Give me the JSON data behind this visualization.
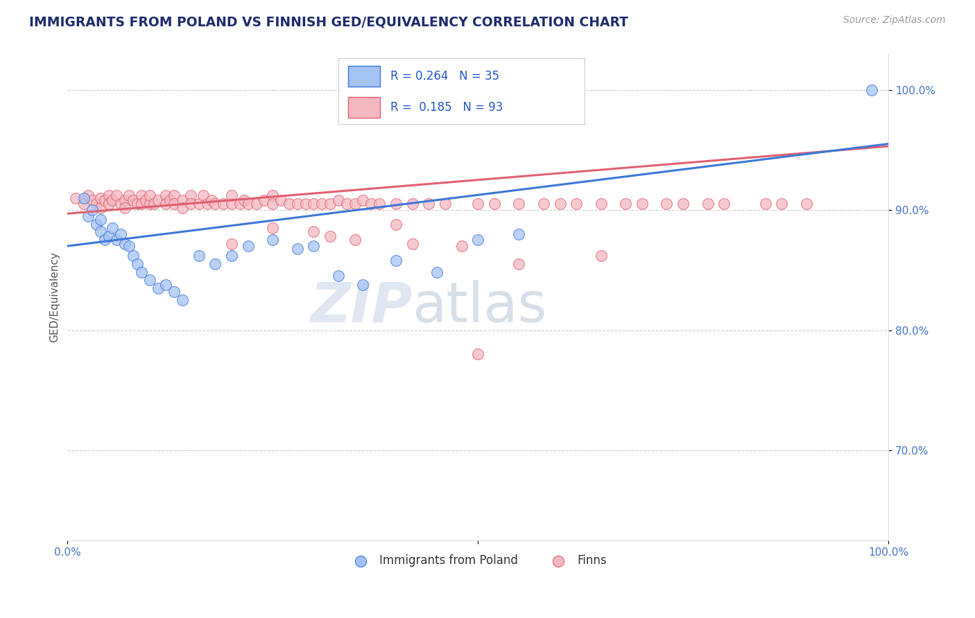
{
  "title": "IMMIGRANTS FROM POLAND VS FINNISH GED/EQUIVALENCY CORRELATION CHART",
  "source_text": "Source: ZipAtlas.com",
  "ylabel": "GED/Equivalency",
  "xlim": [
    0.0,
    1.0
  ],
  "ylim": [
    0.625,
    1.03
  ],
  "legend_text1": "R = 0.264   N = 35",
  "legend_text2": "R =  0.185   N = 93",
  "blue_color": "#a4c2f4",
  "pink_color": "#f4b8c1",
  "line_blue": "#3c78d8",
  "line_pink": "#e06070",
  "title_color": "#1f2d6e",
  "label_color": "#4472c4",
  "background_color": "#ffffff",
  "blue_trend_y_start": 0.87,
  "blue_trend_y_end": 0.955,
  "pink_trend_y_start": 0.897,
  "pink_trend_y_end": 0.953,
  "blue_scatter_x": [
    0.02,
    0.025,
    0.03,
    0.035,
    0.04,
    0.04,
    0.045,
    0.05,
    0.055,
    0.06,
    0.065,
    0.07,
    0.075,
    0.08,
    0.085,
    0.09,
    0.1,
    0.11,
    0.12,
    0.13,
    0.14,
    0.16,
    0.18,
    0.2,
    0.22,
    0.25,
    0.28,
    0.3,
    0.33,
    0.36,
    0.4,
    0.45,
    0.5,
    0.55,
    0.98
  ],
  "blue_scatter_y": [
    0.91,
    0.895,
    0.9,
    0.888,
    0.882,
    0.892,
    0.875,
    0.878,
    0.885,
    0.875,
    0.88,
    0.872,
    0.87,
    0.862,
    0.855,
    0.848,
    0.842,
    0.835,
    0.838,
    0.832,
    0.825,
    0.862,
    0.855,
    0.862,
    0.87,
    0.875,
    0.868,
    0.87,
    0.845,
    0.838,
    0.858,
    0.848,
    0.875,
    0.88,
    1.0
  ],
  "pink_scatter_x": [
    0.01,
    0.02,
    0.025,
    0.03,
    0.035,
    0.04,
    0.04,
    0.045,
    0.05,
    0.05,
    0.055,
    0.06,
    0.065,
    0.07,
    0.07,
    0.075,
    0.08,
    0.085,
    0.09,
    0.09,
    0.095,
    0.1,
    0.1,
    0.105,
    0.11,
    0.12,
    0.12,
    0.125,
    0.13,
    0.13,
    0.14,
    0.14,
    0.15,
    0.15,
    0.16,
    0.165,
    0.17,
    0.175,
    0.18,
    0.19,
    0.2,
    0.2,
    0.21,
    0.215,
    0.22,
    0.23,
    0.24,
    0.25,
    0.25,
    0.26,
    0.27,
    0.28,
    0.29,
    0.3,
    0.31,
    0.32,
    0.33,
    0.34,
    0.35,
    0.36,
    0.37,
    0.38,
    0.4,
    0.42,
    0.44,
    0.46,
    0.5,
    0.52,
    0.55,
    0.58,
    0.6,
    0.62,
    0.65,
    0.68,
    0.7,
    0.73,
    0.75,
    0.78,
    0.8,
    0.85,
    0.87,
    0.9,
    0.55,
    0.65,
    0.42,
    0.35,
    0.3,
    0.25,
    0.2,
    0.32,
    0.4,
    0.48,
    0.5
  ],
  "pink_scatter_y": [
    0.91,
    0.905,
    0.912,
    0.908,
    0.905,
    0.91,
    0.902,
    0.908,
    0.912,
    0.905,
    0.908,
    0.912,
    0.905,
    0.908,
    0.902,
    0.912,
    0.908,
    0.905,
    0.912,
    0.905,
    0.908,
    0.905,
    0.912,
    0.905,
    0.908,
    0.912,
    0.905,
    0.908,
    0.912,
    0.905,
    0.908,
    0.902,
    0.912,
    0.905,
    0.905,
    0.912,
    0.905,
    0.908,
    0.905,
    0.905,
    0.905,
    0.912,
    0.905,
    0.908,
    0.905,
    0.905,
    0.908,
    0.912,
    0.905,
    0.908,
    0.905,
    0.905,
    0.905,
    0.905,
    0.905,
    0.905,
    0.908,
    0.905,
    0.905,
    0.908,
    0.905,
    0.905,
    0.905,
    0.905,
    0.905,
    0.905,
    0.905,
    0.905,
    0.905,
    0.905,
    0.905,
    0.905,
    0.905,
    0.905,
    0.905,
    0.905,
    0.905,
    0.905,
    0.905,
    0.905,
    0.905,
    0.905,
    0.855,
    0.862,
    0.872,
    0.875,
    0.882,
    0.885,
    0.872,
    0.878,
    0.888,
    0.87,
    0.78
  ]
}
